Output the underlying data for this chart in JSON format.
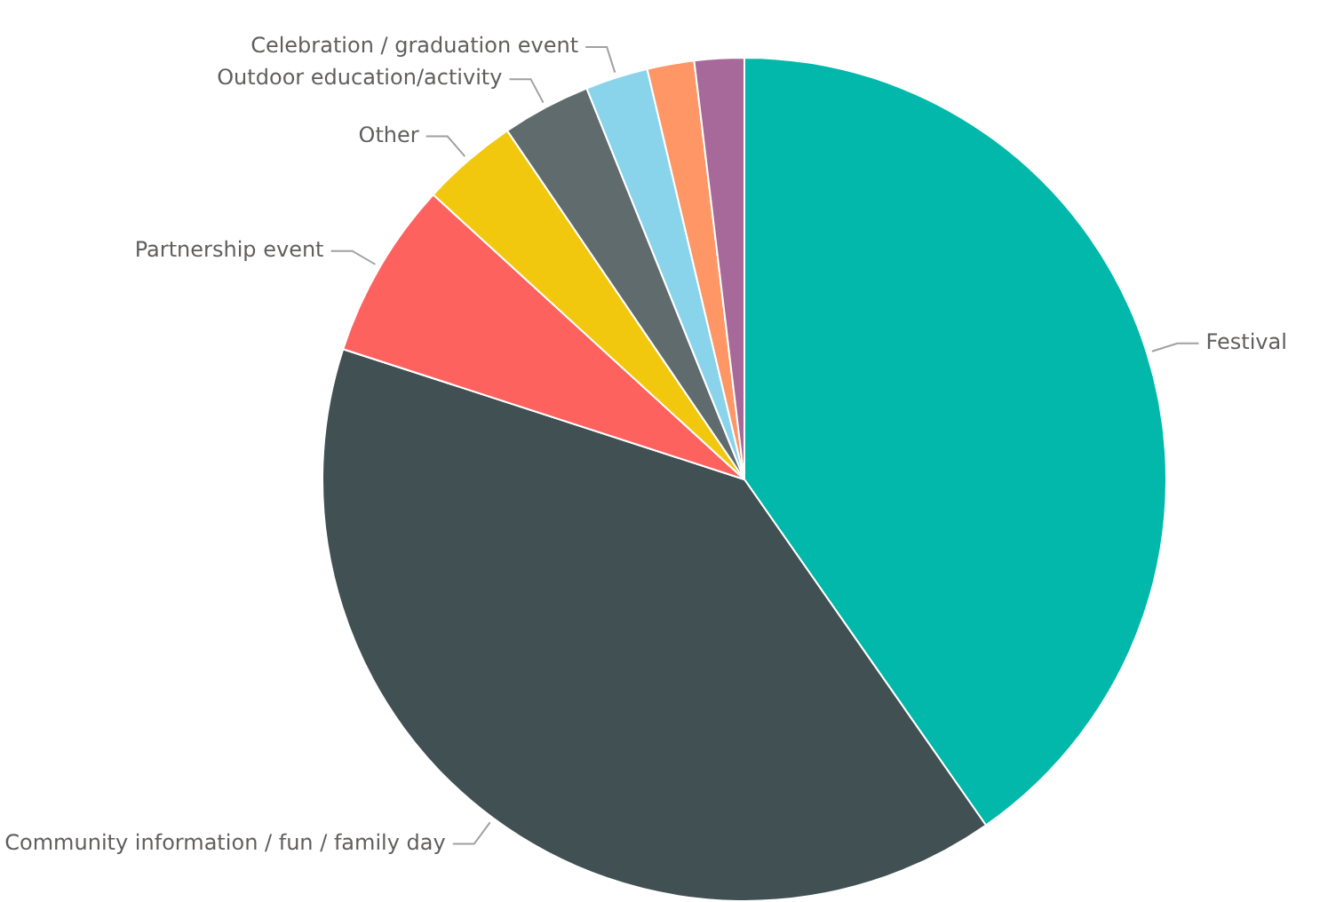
{
  "chart_data": {
    "type": "pie",
    "categories": [
      "Festival",
      "Community information / fun / family day",
      "Partnership event",
      "Other",
      "Outdoor education/activity",
      "Celebration / graduation event",
      null,
      null
    ],
    "values": [
      40.3,
      39.7,
      6.8,
      3.7,
      3.4,
      2.4,
      1.8,
      1.9
    ],
    "colors": [
      "#01b8aa",
      "#415053",
      "#fd625e",
      "#f2c80f",
      "#5f6b6d",
      "#8ad4eb",
      "#fe9666",
      "#a66999"
    ],
    "legend": false
  }
}
